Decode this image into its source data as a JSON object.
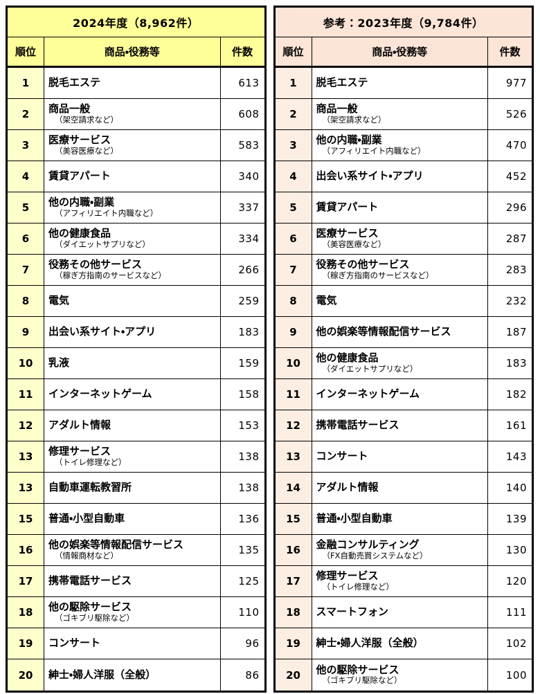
{
  "chart_data": [
    {
      "type": "table",
      "title": "2024年度（8,962件）",
      "total_label": "8,962件",
      "columns": [
        "順位",
        "商品・役務等",
        "件数"
      ],
      "theme": {
        "header_bg": "#ffff99",
        "rank_column_bg": "#ffffcc",
        "border": "#000000",
        "body_bg": "#ffffff"
      },
      "rows": [
        {
          "rank": 1,
          "item": "脱毛エステ",
          "note": "",
          "count": 613
        },
        {
          "rank": 2,
          "item": "商品一般",
          "note": "（架空請求など）",
          "count": 608
        },
        {
          "rank": 3,
          "item": "医療サービス",
          "note": "（美容医療など）",
          "count": 583
        },
        {
          "rank": 4,
          "item": "賃貸アパート",
          "note": "",
          "count": 340
        },
        {
          "rank": 5,
          "item": "他の内職・副業",
          "note": "（アフィリエイト内職など）",
          "count": 337
        },
        {
          "rank": 6,
          "item": "他の健康食品",
          "note": "（ダイエットサプリなど）",
          "count": 334
        },
        {
          "rank": 7,
          "item": "役務その他サービス",
          "note": "（稼ぎ方指南のサービスなど）",
          "count": 266
        },
        {
          "rank": 8,
          "item": "電気",
          "note": "",
          "count": 259
        },
        {
          "rank": 9,
          "item": "出会い系サイト・アプリ",
          "note": "",
          "count": 183
        },
        {
          "rank": 10,
          "item": "乳液",
          "note": "",
          "count": 159
        },
        {
          "rank": 11,
          "item": "インターネットゲーム",
          "note": "",
          "count": 158
        },
        {
          "rank": 12,
          "item": "アダルト情報",
          "note": "",
          "count": 153
        },
        {
          "rank": 13,
          "item": "修理サービス",
          "note": "（トイレ修理など）",
          "count": 138
        },
        {
          "rank": 13,
          "item": "自動車運転教習所",
          "note": "",
          "count": 138
        },
        {
          "rank": 15,
          "item": "普通・小型自動車",
          "note": "",
          "count": 136
        },
        {
          "rank": 16,
          "item": "他の娯楽等情報配信サービス",
          "note": "（情報商材など）",
          "count": 135
        },
        {
          "rank": 17,
          "item": "携帯電話サービス",
          "note": "",
          "count": 125
        },
        {
          "rank": 18,
          "item": "他の駆除サービス",
          "note": "（ゴキブリ駆除など）",
          "count": 110
        },
        {
          "rank": 19,
          "item": "コンサート",
          "note": "",
          "count": 96
        },
        {
          "rank": 20,
          "item": "紳士・婦人洋服（全般）",
          "note": "",
          "count": 86
        }
      ]
    },
    {
      "type": "table",
      "title": "参考：2023年度（9,784件）",
      "total_label": "9,784件",
      "columns": [
        "順位",
        "商品・役務等",
        "件数"
      ],
      "theme": {
        "header_bg": "#fce4d6",
        "rank_column_bg": "#fdeee3",
        "border": "#000000",
        "body_bg": "#ffffff"
      },
      "rows": [
        {
          "rank": 1,
          "item": "脱毛エステ",
          "note": "",
          "count": 977
        },
        {
          "rank": 2,
          "item": "商品一般",
          "note": "（架空請求など）",
          "count": 526
        },
        {
          "rank": 3,
          "item": "他の内職・副業",
          "note": "（アフィリエイト内職など）",
          "count": 470
        },
        {
          "rank": 4,
          "item": "出会い系サイト・アプリ",
          "note": "",
          "count": 452
        },
        {
          "rank": 5,
          "item": "賃貸アパート",
          "note": "",
          "count": 296
        },
        {
          "rank": 6,
          "item": "医療サービス",
          "note": "（美容医療など）",
          "count": 287
        },
        {
          "rank": 7,
          "item": "役務その他サービス",
          "note": "（稼ぎ方指南のサービスなど）",
          "count": 283
        },
        {
          "rank": 8,
          "item": "電気",
          "note": "",
          "count": 232
        },
        {
          "rank": 9,
          "item": "他の娯楽等情報配信サービス",
          "note": "",
          "count": 187
        },
        {
          "rank": 10,
          "item": "他の健康食品",
          "note": "（ダイエットサプリなど）",
          "count": 183
        },
        {
          "rank": 11,
          "item": "インターネットゲーム",
          "note": "",
          "count": 182
        },
        {
          "rank": 12,
          "item": "携帯電話サービス",
          "note": "",
          "count": 161
        },
        {
          "rank": 13,
          "item": "コンサート",
          "note": "",
          "count": 143
        },
        {
          "rank": 14,
          "item": "アダルト情報",
          "note": "",
          "count": 140
        },
        {
          "rank": 15,
          "item": "普通・小型自動車",
          "note": "",
          "count": 139
        },
        {
          "rank": 16,
          "item": "金融コンサルティング",
          "note": "（FX自動売買システムなど）",
          "count": 130
        },
        {
          "rank": 17,
          "item": "修理サービス",
          "note": "（トイレ修理など）",
          "count": 120
        },
        {
          "rank": 18,
          "item": "スマートフォン",
          "note": "",
          "count": 111
        },
        {
          "rank": 19,
          "item": "紳士・婦人洋服（全般）",
          "note": "",
          "count": 102
        },
        {
          "rank": 20,
          "item": "他の駆除サービス",
          "note": "（ゴキブリ駆除など）",
          "count": 100
        }
      ]
    }
  ]
}
